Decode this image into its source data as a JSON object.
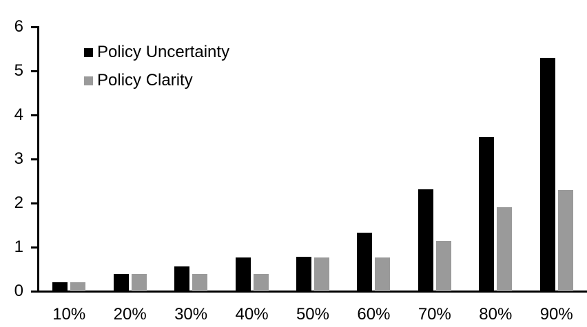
{
  "chart_data": {
    "type": "bar",
    "title": "",
    "categories": [
      "10%",
      "20%",
      "30%",
      "40%",
      "50%",
      "60%",
      "70%",
      "80%",
      "90%"
    ],
    "series": [
      {
        "name": "Policy Uncertainty",
        "color": "#000000",
        "values": [
          0.2,
          0.39,
          0.57,
          0.77,
          0.78,
          1.33,
          2.31,
          3.5,
          5.3
        ]
      },
      {
        "name": "Policy Clarity",
        "color": "#9a9a9a",
        "values": [
          0.2,
          0.39,
          0.39,
          0.39,
          0.77,
          0.77,
          1.14,
          1.9,
          2.3
        ]
      }
    ],
    "xlabel": "",
    "ylabel": "",
    "ylim": [
      0,
      6
    ],
    "yticks": [
      0,
      1,
      2,
      3,
      4,
      5,
      6
    ],
    "grid": false,
    "legend_position": "upper-left-inside",
    "axis_color": "#000000",
    "background": "#ffffff"
  }
}
